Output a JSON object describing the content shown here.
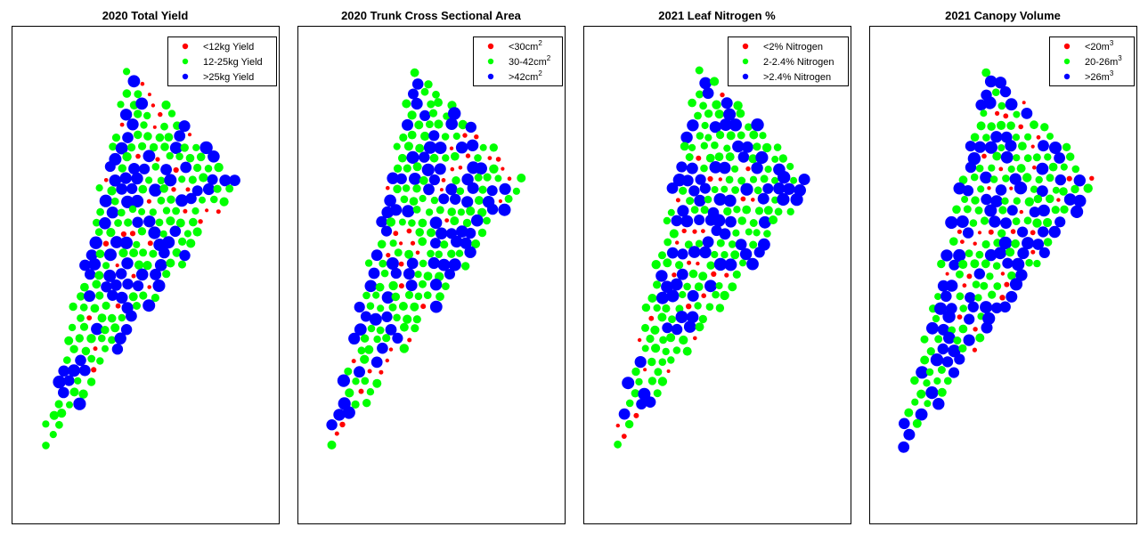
{
  "colors": {
    "red": "#ff0000",
    "green": "#00ff00",
    "blue": "#0000ff"
  },
  "chart_data": [
    {
      "type": "scatter",
      "title": "2020 Total Yield",
      "legend_position": "top-right",
      "legend": [
        {
          "label": "<12kg Yield",
          "color": "#ff0000"
        },
        {
          "label": "12-25kg Yield",
          "color": "#00ff00"
        },
        {
          "label": ">25kg Yield",
          "color": "#0000ff"
        }
      ],
      "seed": 11
    },
    {
      "type": "scatter",
      "title": "2020 Trunk Cross Sectional Area",
      "legend_position": "top-right",
      "legend": [
        {
          "label": "<30cm",
          "sup": "2",
          "color": "#ff0000"
        },
        {
          "label": "30-42cm",
          "sup": "2",
          "color": "#00ff00"
        },
        {
          "label": ">42cm",
          "sup": "2",
          "color": "#0000ff"
        }
      ],
      "seed": 29
    },
    {
      "type": "scatter",
      "title": "2021 Leaf Nitrogen %",
      "legend_position": "top-right",
      "legend": [
        {
          "label": "<2% Nitrogen",
          "color": "#ff0000"
        },
        {
          "label": "2-2.4% Nitrogen",
          "color": "#00ff00"
        },
        {
          "label": ">2.4% Nitrogen",
          "color": "#0000ff"
        }
      ],
      "seed": 47
    },
    {
      "type": "scatter",
      "title": "2021 Canopy Volume",
      "legend_position": "top-right",
      "legend": [
        {
          "label": "<20m",
          "sup": "3",
          "color": "#ff0000"
        },
        {
          "label": "20-26m",
          "sup": "3",
          "color": "#00ff00"
        },
        {
          "label": ">26m",
          "sup": "3",
          "color": "#0000ff"
        }
      ],
      "seed": 83
    }
  ]
}
